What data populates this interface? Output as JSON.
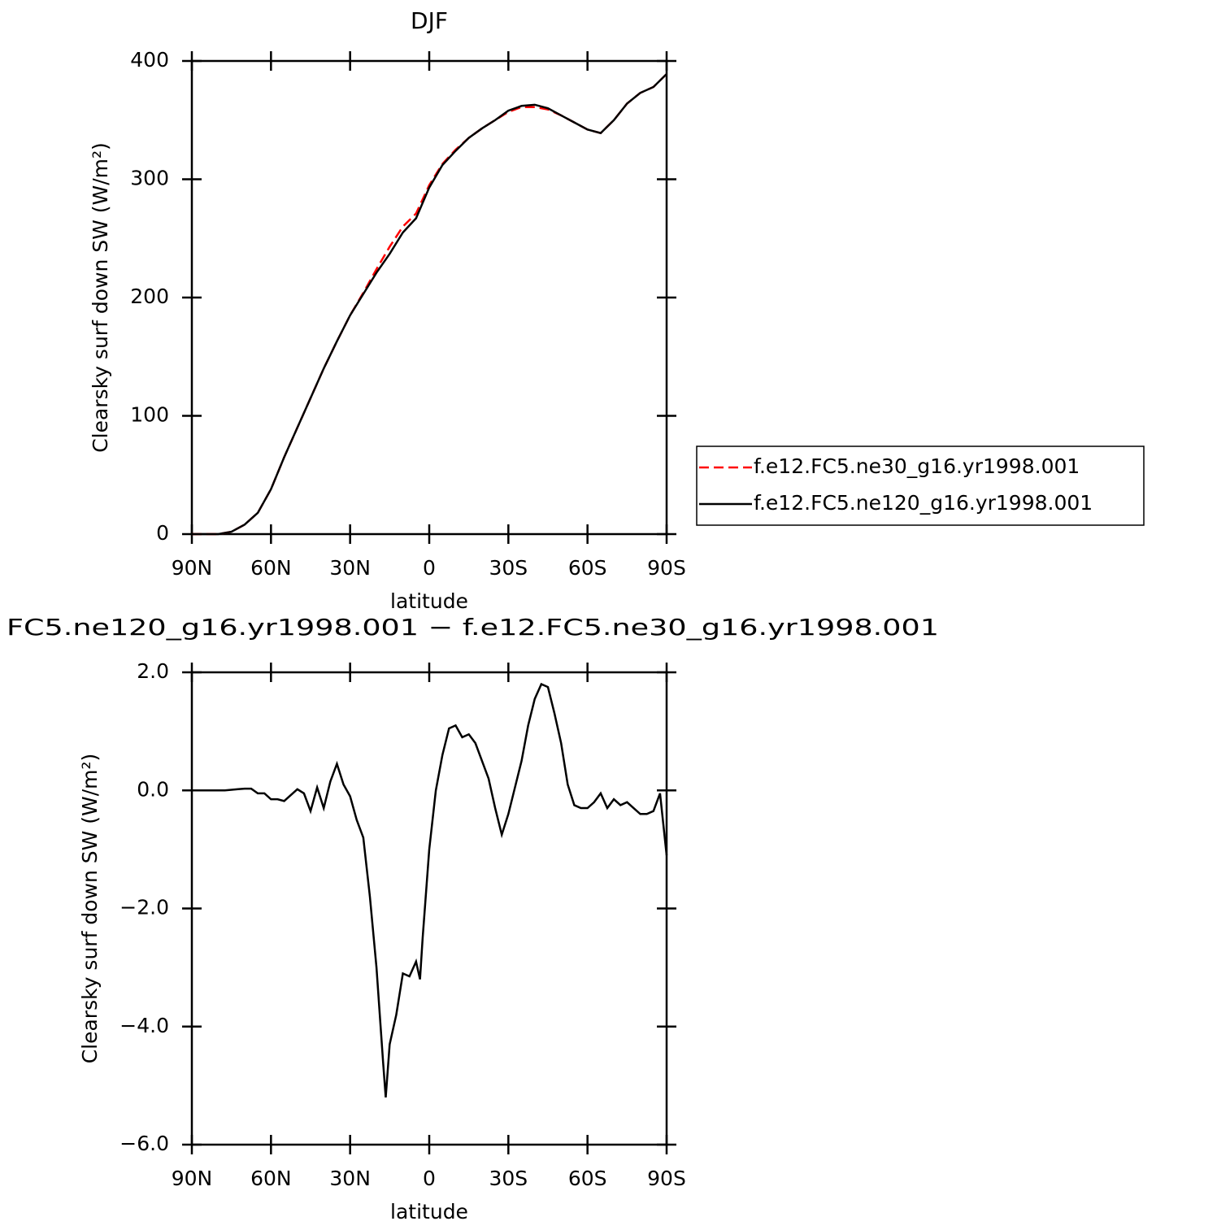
{
  "chart_data": [
    {
      "type": "line",
      "title": "DJF",
      "xlabel": "latitude",
      "ylabel": "Clearsky surf down SW (W/m²)",
      "x": [
        90,
        85,
        80,
        75,
        70,
        65,
        60,
        55,
        50,
        45,
        40,
        35,
        30,
        25,
        20,
        15,
        10,
        5,
        0,
        -5,
        -10,
        -15,
        -20,
        -25,
        -30,
        -35,
        -40,
        -45,
        -50,
        -55,
        -60,
        -65,
        -70,
        -75,
        -80,
        -85,
        -90
      ],
      "series": [
        {
          "name": "f.e12.FC5.ne30_g16.yr1998.001",
          "color": "#ff0000",
          "linestyle": "dashed",
          "values": [
            0,
            0,
            0,
            2,
            8,
            18,
            38,
            65,
            90,
            115,
            140,
            163,
            185,
            204,
            224,
            243,
            260,
            271,
            295,
            313,
            325,
            335,
            343,
            350,
            357,
            361,
            361,
            359,
            354,
            348,
            342,
            339,
            350,
            364,
            373,
            378,
            389
          ]
        },
        {
          "name": "f.e12.FC5.ne120_g16.yr1998.001",
          "color": "#000000",
          "linestyle": "solid",
          "values": [
            0,
            0,
            0,
            2,
            8,
            18,
            38,
            65,
            90,
            115,
            140,
            163,
            185,
            203,
            221,
            237,
            255,
            267,
            293,
            312,
            324,
            335,
            343,
            350,
            358,
            362,
            363,
            360,
            354,
            348,
            342,
            339,
            350,
            364,
            373,
            378,
            389
          ]
        }
      ],
      "xlim": [
        90,
        -90
      ],
      "xticks": [
        {
          "value": 90,
          "label": "90N"
        },
        {
          "value": 60,
          "label": "60N"
        },
        {
          "value": 30,
          "label": "30N"
        },
        0,
        {
          "value": -30,
          "label": "30S"
        },
        {
          "value": -60,
          "label": "60S"
        },
        {
          "value": -90,
          "label": "90S"
        }
      ],
      "ylim": [
        0,
        400
      ],
      "yticks": [
        0,
        100,
        200,
        300,
        400
      ],
      "legend": "right"
    },
    {
      "type": "line",
      "title": "FC5.ne120_g16.yr1998.001 − f.e12.FC5.ne30_g16.yr1998.001",
      "xlabel": "latitude",
      "ylabel": "Clearsky surf down SW (W/m²)",
      "x": [
        90,
        87.5,
        85,
        82.5,
        80,
        77.5,
        75,
        72.5,
        70,
        67.5,
        65,
        62.5,
        60,
        57.5,
        55,
        52.5,
        50,
        47.5,
        45,
        42.5,
        40,
        37.5,
        35,
        32.5,
        30,
        27.5,
        25,
        22.5,
        20,
        17.5,
        16.5,
        15,
        12.5,
        10,
        7.5,
        5,
        3.5,
        2.5,
        0,
        -2.5,
        -5,
        -7.5,
        -10,
        -12.5,
        -15,
        -17.5,
        -20,
        -22.5,
        -25,
        -27.5,
        -30,
        -32.5,
        -35,
        -37.5,
        -40,
        -42.5,
        -45,
        -47.5,
        -50,
        -52.5,
        -55,
        -57.5,
        -60,
        -62.5,
        -65,
        -67.5,
        -70,
        -72.5,
        -75,
        -77.5,
        -80,
        -82.5,
        -85,
        -87.5,
        -90
      ],
      "series": [
        {
          "color": "#000000",
          "linestyle": "solid",
          "values": [
            0,
            0,
            0,
            0,
            0,
            0,
            0.01,
            0.02,
            0.03,
            0.03,
            -0.05,
            -0.05,
            -0.15,
            -0.15,
            -0.18,
            -0.08,
            0.02,
            -0.05,
            -0.35,
            0.05,
            -0.3,
            0.15,
            0.45,
            0.1,
            -0.1,
            -0.5,
            -0.8,
            -1.8,
            -3.0,
            -4.6,
            -5.2,
            -4.3,
            -3.8,
            -3.1,
            -3.15,
            -2.9,
            -3.2,
            -2.5,
            -1.0,
            0.0,
            0.6,
            1.05,
            1.1,
            0.9,
            0.95,
            0.8,
            0.5,
            0.2,
            -0.3,
            -0.75,
            -0.4,
            0.05,
            0.5,
            1.1,
            1.55,
            1.8,
            1.75,
            1.3,
            0.8,
            0.1,
            -0.25,
            -0.3,
            -0.3,
            -0.2,
            -0.05,
            -0.3,
            -0.15,
            -0.25,
            -0.2,
            -0.3,
            -0.4,
            -0.4,
            -0.35,
            -0.05,
            -1.1
          ]
        }
      ],
      "xlim": [
        90,
        -90
      ],
      "xticks": [
        {
          "value": 90,
          "label": "90N"
        },
        {
          "value": 60,
          "label": "60N"
        },
        {
          "value": 30,
          "label": "30N"
        },
        0,
        {
          "value": -30,
          "label": "30S"
        },
        {
          "value": -60,
          "label": "60S"
        },
        {
          "value": -90,
          "label": "90S"
        }
      ],
      "ylim": [
        -6,
        2
      ],
      "yticks": [
        {
          "value": -6,
          "label": "−6.0"
        },
        {
          "value": -4,
          "label": "−4.0"
        },
        {
          "value": -2,
          "label": "−2.0"
        },
        {
          "value": 0,
          "label": "0.0"
        },
        {
          "value": 2,
          "label": "2.0"
        }
      ]
    }
  ]
}
